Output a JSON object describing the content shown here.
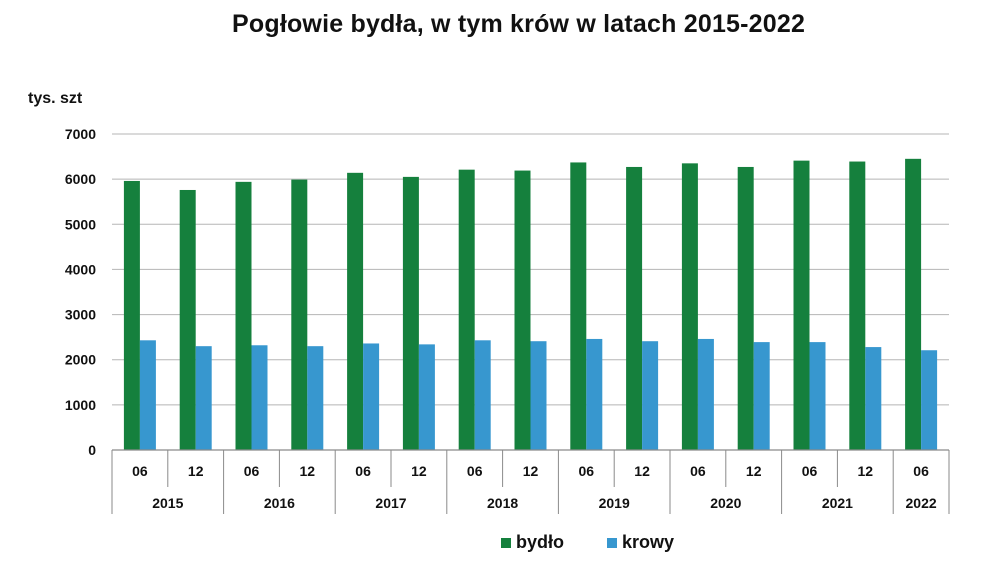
{
  "chart_data": {
    "type": "bar",
    "title": "Pogłowie bydła, w tym krów w latach 2015-2022",
    "ylabel": "tys. szt",
    "ylim": [
      0,
      7000
    ],
    "yticks": [
      0,
      1000,
      2000,
      3000,
      4000,
      5000,
      6000,
      7000
    ],
    "grid": true,
    "legend_position": "bottom",
    "categories": [
      "06",
      "12",
      "06",
      "12",
      "06",
      "12",
      "06",
      "12",
      "06",
      "12",
      "06",
      "12",
      "06",
      "12",
      "06"
    ],
    "years": [
      {
        "label": "2015",
        "span": 2
      },
      {
        "label": "2016",
        "span": 2
      },
      {
        "label": "2017",
        "span": 2
      },
      {
        "label": "2018",
        "span": 2
      },
      {
        "label": "2019",
        "span": 2
      },
      {
        "label": "2020",
        "span": 2
      },
      {
        "label": "2021",
        "span": 2
      },
      {
        "label": "2022",
        "span": 1
      }
    ],
    "series": [
      {
        "name": "bydło",
        "color": "#15803d",
        "values": [
          5960,
          5760,
          5940,
          5990,
          6140,
          6050,
          6210,
          6190,
          6370,
          6270,
          6350,
          6270,
          6410,
          6390,
          6450
        ]
      },
      {
        "name": "krowy",
        "color": "#3797cf",
        "values": [
          2430,
          2300,
          2320,
          2300,
          2360,
          2340,
          2430,
          2410,
          2460,
          2410,
          2460,
          2390,
          2390,
          2280,
          2210
        ]
      }
    ]
  }
}
